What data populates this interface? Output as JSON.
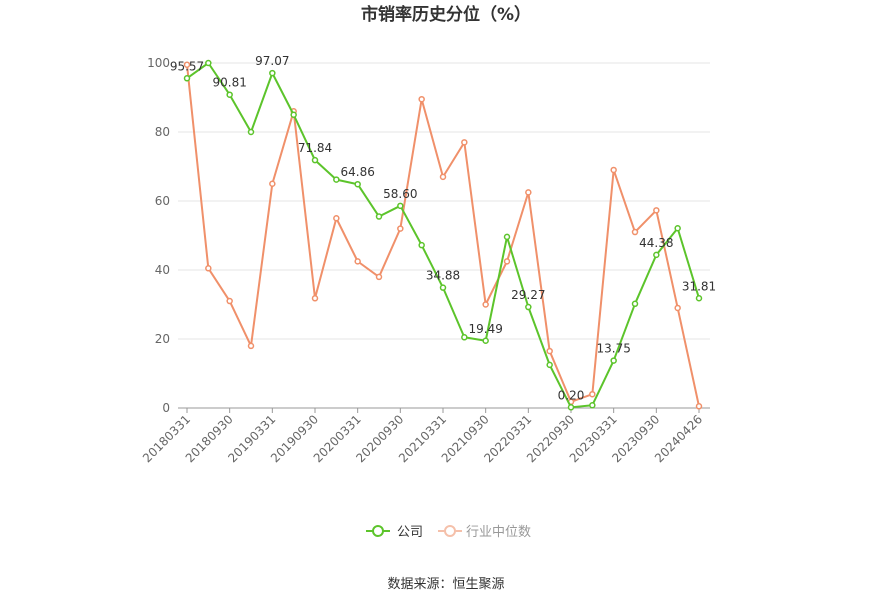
{
  "chart_data": {
    "type": "line",
    "title": "市销率历史分位（%）",
    "source": "数据来源：恒生聚源",
    "ylim": [
      0,
      100
    ],
    "yticks": [
      0,
      20,
      40,
      60,
      80,
      100
    ],
    "grid": true,
    "legend_position": "bottom",
    "x": [
      "20180331",
      "20180630",
      "20180930",
      "20181231",
      "20190331",
      "20190630",
      "20190930",
      "20191231",
      "20200331",
      "20200630",
      "20200930",
      "20201231",
      "20210331",
      "20210630",
      "20210930",
      "20211231",
      "20220331",
      "20220630",
      "20220930",
      "20221231",
      "20230331",
      "20230630",
      "20230930",
      "20231231",
      "20240426"
    ],
    "x_tick_labels": [
      "20180331",
      "20180930",
      "20190331",
      "20190930",
      "20200331",
      "20200930",
      "20210331",
      "20210930",
      "20220331",
      "20220930",
      "20230331",
      "20230930",
      "20240426"
    ],
    "series": [
      {
        "name": "公司",
        "color": "#5cc42b",
        "values": [
          95.57,
          100,
          90.81,
          80,
          97.07,
          85,
          71.84,
          66.2,
          64.86,
          55.5,
          58.6,
          47.2,
          34.88,
          20.5,
          19.49,
          49.6,
          29.27,
          12.5,
          0.2,
          0.8,
          13.75,
          30.2,
          44.38,
          52.1,
          31.81
        ],
        "labels": {
          "0": "95.57",
          "2": "90.81",
          "4": "97.07",
          "6": "71.84",
          "8": "64.86",
          "10": "58.60",
          "12": "34.88",
          "14": "19.49",
          "16": "29.27",
          "18": "0.20",
          "20": "13.75",
          "22": "44.38",
          "24": "31.81"
        }
      },
      {
        "name": "行业中位数",
        "color": "#f0906a",
        "values": [
          99.5,
          40.5,
          31,
          18,
          65,
          86,
          31.8,
          55,
          42.5,
          38,
          52,
          89.5,
          67,
          77,
          30,
          42.5,
          62.5,
          16.5,
          1.8,
          4,
          69,
          51,
          57.3,
          29,
          0.5
        ]
      }
    ]
  }
}
